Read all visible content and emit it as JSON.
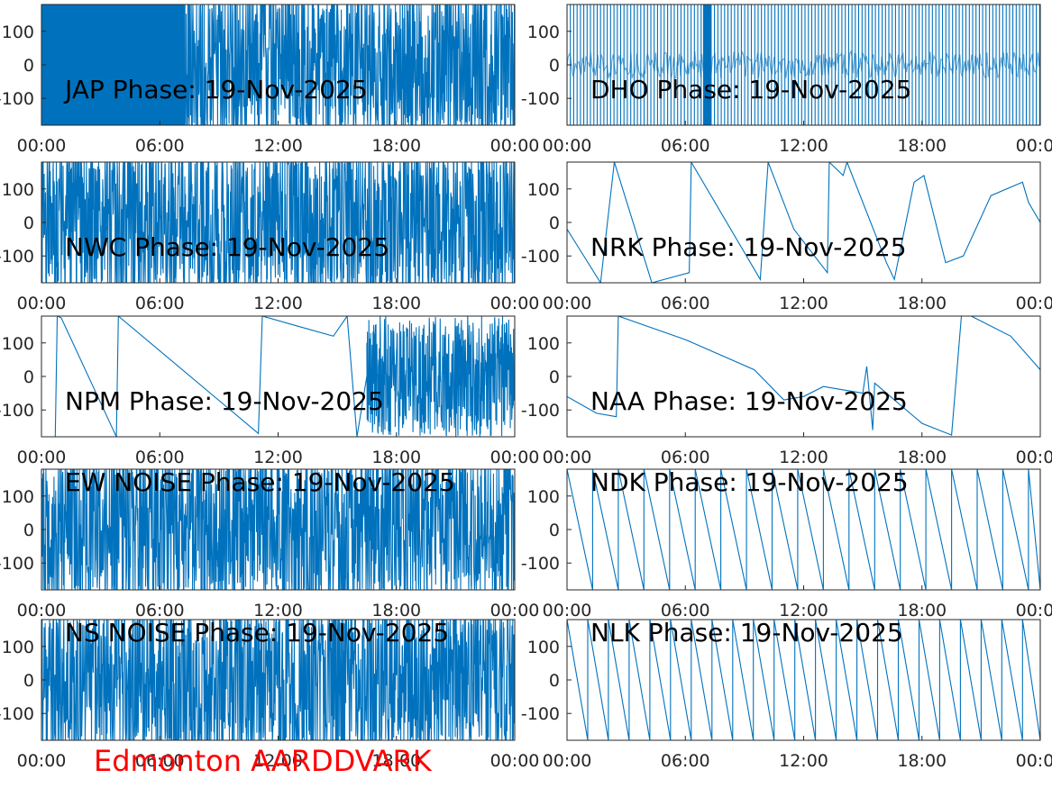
{
  "figure": {
    "caption": "Edmonton AARDDVARK",
    "caption_color": "#ff0000",
    "line_color": "#0072BD"
  },
  "chart_data": [
    {
      "type": "line",
      "title": "JAP Phase: 19-Nov-2025",
      "x_ticks": [
        "00:00",
        "06:00",
        "12:00",
        "18:00",
        "00:00"
      ],
      "y_ticks": [
        "100",
        "0",
        "-100"
      ],
      "xlim": [
        0,
        24
      ],
      "ylim": [
        -180,
        180
      ],
      "grid": false,
      "pattern": "noise_then_dense_start",
      "dense_until_hour": 7.3,
      "series": [
        {
          "x": [
            0,
            24
          ],
          "y": [
            0,
            0
          ]
        }
      ]
    },
    {
      "type": "line",
      "title": "DHO Phase: 19-Nov-2025",
      "x_ticks": [
        "00:00",
        "06:00",
        "12:00",
        "18:00",
        "00:00"
      ],
      "y_ticks": [
        "100",
        "0",
        "-100"
      ],
      "xlim": [
        0,
        24
      ],
      "ylim": [
        -180,
        180
      ],
      "grid": false,
      "pattern": "vertical_wraps_dense",
      "series": [
        {
          "x": [
            0,
            24
          ],
          "y": [
            0,
            0
          ]
        }
      ]
    },
    {
      "type": "line",
      "title": "NWC Phase: 19-Nov-2025",
      "x_ticks": [
        "00:00",
        "06:00",
        "12:00",
        "18:00",
        "00:00"
      ],
      "y_ticks": [
        "100",
        "0",
        "-100"
      ],
      "xlim": [
        0,
        24
      ],
      "ylim": [
        -180,
        180
      ],
      "grid": false,
      "pattern": "noise",
      "series": [
        {
          "x": [
            0,
            24
          ],
          "y": [
            0,
            0
          ]
        }
      ]
    },
    {
      "type": "line",
      "title": "NRK Phase: 19-Nov-2025",
      "x_ticks": [
        "00:00",
        "06:00",
        "12:00",
        "18:00",
        "00:00"
      ],
      "y_ticks": [
        "100",
        "0",
        "-100"
      ],
      "xlim": [
        0,
        24
      ],
      "ylim": [
        -180,
        180
      ],
      "grid": false,
      "pattern": "sawtooth",
      "series": [
        {
          "x": [
            0,
            1.7,
            2.4,
            4.3,
            6.2,
            6.3,
            9.8,
            10.2,
            11.5,
            13.2,
            13.3,
            14.0,
            14.2,
            16.2,
            16.6,
            17.6,
            18.1,
            19.2,
            20.1,
            21.5,
            23.1,
            23.4,
            24.0
          ],
          "y": [
            -20,
            -180,
            180,
            -180,
            -150,
            180,
            -170,
            180,
            -20,
            -150,
            180,
            140,
            180,
            -120,
            -170,
            120,
            140,
            -120,
            -100,
            80,
            120,
            60,
            0
          ]
        }
      ]
    },
    {
      "type": "line",
      "title": "NPM Phase: 19-Nov-2025",
      "x_ticks": [
        "00:00",
        "06:00",
        "12:00",
        "18:00",
        "00:00"
      ],
      "y_ticks": [
        "100",
        "0",
        "-100"
      ],
      "xlim": [
        0,
        24
      ],
      "ylim": [
        -180,
        180
      ],
      "grid": false,
      "pattern": "phase_drift_then_noise",
      "noise_from_hour": 16.5,
      "series": [
        {
          "x": [
            0,
            0.7,
            0.8,
            1.0,
            3.8,
            3.9,
            11.0,
            11.2,
            13.0,
            14.8,
            15.5,
            16.0,
            16.5
          ],
          "y": [
            -180,
            -180,
            180,
            175,
            -180,
            180,
            -170,
            180,
            150,
            120,
            180,
            -180,
            0
          ]
        }
      ]
    },
    {
      "type": "line",
      "title": "NAA Phase: 19-Nov-2025",
      "x_ticks": [
        "00:00",
        "06:00",
        "12:00",
        "18:00",
        "00:00"
      ],
      "y_ticks": [
        "100",
        "0",
        "-100"
      ],
      "xlim": [
        0,
        24
      ],
      "ylim": [
        -180,
        180
      ],
      "grid": false,
      "pattern": "phase_drift",
      "series": [
        {
          "x": [
            0,
            1.5,
            2.5,
            2.6,
            6.0,
            9.5,
            11.0,
            12.0,
            13.0,
            15.0,
            15.2,
            15.5,
            15.6,
            18.0,
            19.5,
            20.0,
            20.5,
            22.5,
            24.0
          ],
          "y": [
            -60,
            -110,
            -120,
            180,
            110,
            20,
            -70,
            -60,
            -30,
            -50,
            30,
            -160,
            -20,
            -140,
            -175,
            180,
            180,
            120,
            20
          ]
        }
      ]
    },
    {
      "type": "line",
      "title": "EW NOISE Phase: 19-Nov-2025",
      "x_ticks": [
        "00:00",
        "06:00",
        "12:00",
        "18:00",
        "00:00"
      ],
      "y_ticks": [
        "100",
        "0",
        "-100"
      ],
      "xlim": [
        0,
        24
      ],
      "ylim": [
        -180,
        180
      ],
      "grid": false,
      "pattern": "noise",
      "series": [
        {
          "x": [
            0,
            24
          ],
          "y": [
            0,
            0
          ]
        }
      ]
    },
    {
      "type": "line",
      "title": "NDK Phase: 19-Nov-2025",
      "x_ticks": [
        "00:00",
        "06:00",
        "12:00",
        "18:00",
        "00:00"
      ],
      "y_ticks": [
        "100",
        "0",
        "-100"
      ],
      "xlim": [
        0,
        24
      ],
      "ylim": [
        -180,
        180
      ],
      "grid": false,
      "pattern": "sawtooth",
      "wrap_period_hours": 1.3,
      "series": [
        {
          "x": [
            0,
            1.3
          ],
          "y": [
            180,
            -180
          ]
        }
      ]
    },
    {
      "type": "line",
      "title": "NS NOISE Phase: 19-Nov-2025",
      "x_ticks": [
        "00:00",
        "06:00",
        "12:00",
        "18:00",
        "00:00"
      ],
      "y_ticks": [
        "100",
        "0",
        "-100"
      ],
      "xlim": [
        0,
        24
      ],
      "ylim": [
        -180,
        180
      ],
      "grid": false,
      "pattern": "noise",
      "series": [
        {
          "x": [
            0,
            24
          ],
          "y": [
            0,
            0
          ]
        }
      ]
    },
    {
      "type": "line",
      "title": "NLK Phase: 19-Nov-2025",
      "x_ticks": [
        "00:00",
        "06:00",
        "12:00",
        "18:00",
        "00:00"
      ],
      "y_ticks": [
        "100",
        "0",
        "-100"
      ],
      "xlim": [
        0,
        24
      ],
      "ylim": [
        -180,
        180
      ],
      "grid": false,
      "pattern": "sawtooth",
      "wrap_period_hours": 1.05,
      "series": [
        {
          "x": [
            0,
            1.05
          ],
          "y": [
            180,
            -180
          ]
        }
      ]
    }
  ]
}
